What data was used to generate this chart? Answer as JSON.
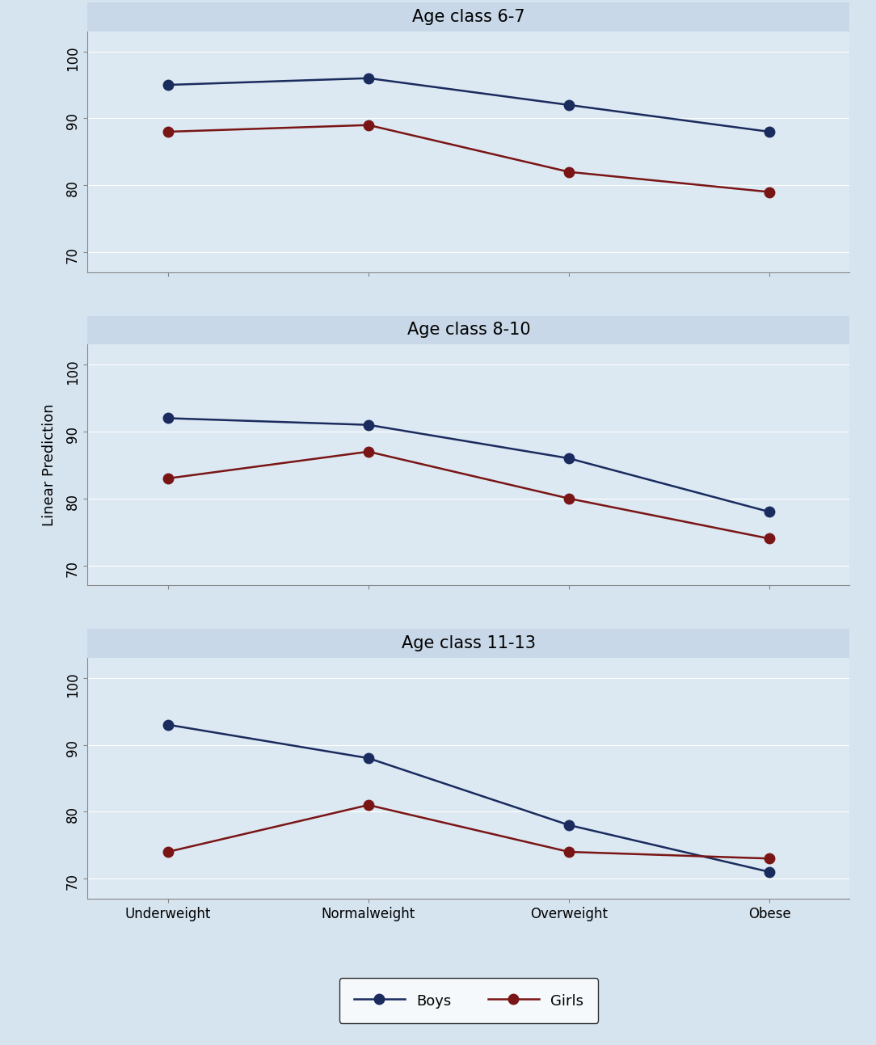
{
  "panels": [
    {
      "title": "Age class 6-7",
      "boys": [
        95,
        96,
        92,
        88
      ],
      "girls": [
        88,
        89,
        82,
        79
      ]
    },
    {
      "title": "Age class 8-10",
      "boys": [
        92,
        91,
        86,
        78
      ],
      "girls": [
        83,
        87,
        80,
        74
      ]
    },
    {
      "title": "Age class 11-13",
      "boys": [
        93,
        88,
        78,
        71
      ],
      "girls": [
        74,
        81,
        74,
        73
      ]
    }
  ],
  "x_labels": [
    "Underweight",
    "Normalweight",
    "Overweight",
    "Obese"
  ],
  "ylabel": "Linear Prediction",
  "ylim": [
    67,
    103
  ],
  "yticks": [
    70,
    80,
    90,
    100
  ],
  "boys_color": "#1a2b5e",
  "girls_color": "#7a1515",
  "outer_bg_color": "#d6e4ef",
  "plot_bg_color": "#dce8f2",
  "title_band_color": "#c8d8e8",
  "grid_color": "#ffffff",
  "line_width": 1.8,
  "marker_size": 9,
  "title_fontsize": 15,
  "tick_fontsize": 12,
  "label_fontsize": 13,
  "legend_fontsize": 13
}
